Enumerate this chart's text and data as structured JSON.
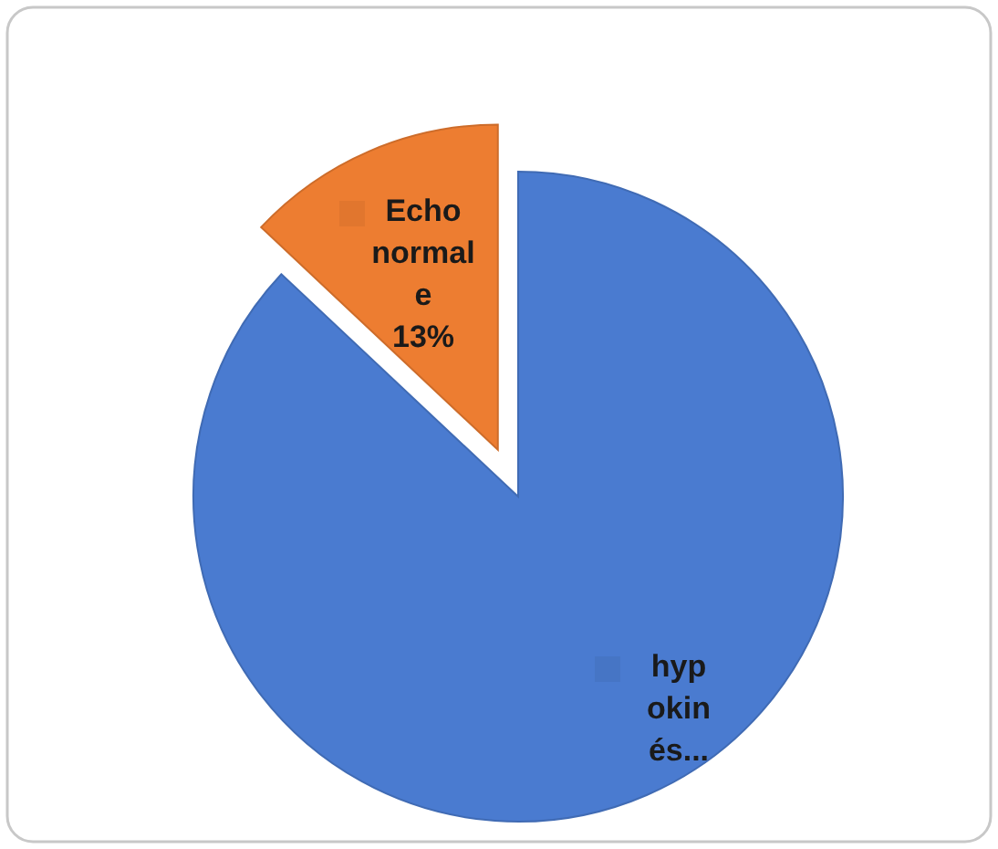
{
  "chart_data": {
    "type": "pie",
    "categories": [
      "hypokinés...",
      "Echo normale"
    ],
    "values": [
      87,
      13
    ],
    "colors": [
      "#4a7bd0",
      "#ed7d31"
    ],
    "value_labels": [
      null,
      "13%"
    ],
    "legend": "center"
  }
}
